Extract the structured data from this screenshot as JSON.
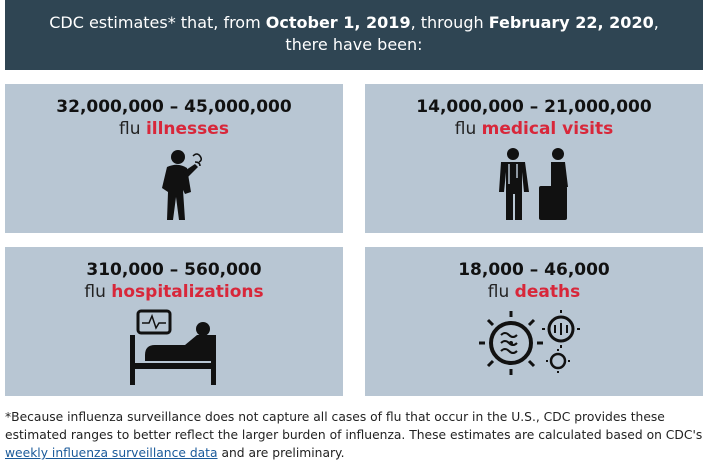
{
  "header": {
    "parts": [
      "CDC estimates* that, from ",
      "October 1, 2019",
      ", through ",
      "February 22, 2020",
      ", there have been:"
    ]
  },
  "cards": [
    {
      "range": "32,000,000 – 45,000,000",
      "prefix": "flu",
      "label": "illnesses"
    },
    {
      "range": "14,000,000 – 21,000,000",
      "prefix": "flu",
      "label": "medical visits"
    },
    {
      "range": "310,000 – 560,000",
      "prefix": "flu",
      "label": "hospitalizations"
    },
    {
      "range": "18,000 – 46,000",
      "prefix": "flu",
      "label": "deaths"
    }
  ],
  "footnote": {
    "before": "*Because influenza surveillance does not capture all cases of flu that occur in the U.S., CDC provides these estimated ranges to better reflect the larger burden of influenza. These estimates are calculated based on CDC's ",
    "link": "weekly influenza surveillance data",
    "after": " and are preliminary."
  }
}
